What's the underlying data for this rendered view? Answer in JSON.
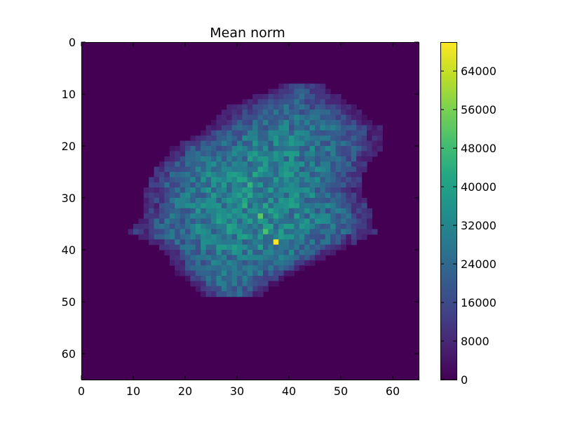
{
  "chart_data": {
    "type": "heatmap",
    "title": "Mean norm",
    "xlabel": "",
    "ylabel": "",
    "grid": false,
    "colormap": "viridis",
    "grid_size": [
      65,
      65
    ],
    "xlim": [
      0,
      65
    ],
    "ylim": [
      65,
      0
    ],
    "x_ticks": [
      0,
      10,
      20,
      30,
      40,
      50,
      60
    ],
    "y_ticks": [
      0,
      10,
      20,
      30,
      40,
      50,
      60
    ],
    "colorbar": {
      "min": 0,
      "max": 70000,
      "ticks": [
        0,
        8000,
        16000,
        24000,
        32000,
        40000,
        48000,
        56000,
        64000
      ]
    },
    "blob": {
      "center_col": 34,
      "center_row": 30,
      "typical_value": 26000,
      "boundary": [
        {
          "row": 8,
          "col_start": 38,
          "col_end": 46
        },
        {
          "row": 12,
          "col_start": 28,
          "col_end": 52
        },
        {
          "row": 16,
          "col_start": 24,
          "col_end": 57
        },
        {
          "row": 20,
          "col_start": 17,
          "col_end": 57
        },
        {
          "row": 24,
          "col_start": 14,
          "col_end": 54
        },
        {
          "row": 28,
          "col_start": 12,
          "col_end": 53
        },
        {
          "row": 32,
          "col_start": 12,
          "col_end": 55
        },
        {
          "row": 36,
          "col_start": 9,
          "col_end": 56
        },
        {
          "row": 40,
          "col_start": 16,
          "col_end": 48
        },
        {
          "row": 44,
          "col_start": 18,
          "col_end": 40
        },
        {
          "row": 48,
          "col_start": 23,
          "col_end": 34
        }
      ],
      "hotspots": [
        {
          "row": 38,
          "col": 37,
          "value": 70000
        },
        {
          "row": 33,
          "col": 34,
          "value": 52000
        },
        {
          "row": 36,
          "col": 35,
          "value": 50000
        },
        {
          "row": 27,
          "col": 32,
          "value": 46000
        },
        {
          "row": 31,
          "col": 31,
          "value": 44000
        }
      ]
    }
  }
}
